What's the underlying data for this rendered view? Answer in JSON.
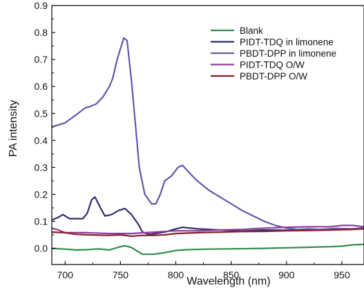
{
  "chart_data": {
    "type": "line",
    "title": "",
    "xlabel": "Wavelength (nm)",
    "ylabel": "PA intensity",
    "xlim": [
      688,
      970
    ],
    "ylim": [
      -0.06,
      0.9
    ],
    "xticks": [
      700,
      750,
      800,
      850,
      900,
      950
    ],
    "xtick_labels": [
      "700",
      "750",
      "800",
      "850",
      "900",
      "950"
    ],
    "yticks": [
      0.0,
      0.1,
      0.2,
      0.3,
      0.4,
      0.5,
      0.6,
      0.7,
      0.8,
      0.9
    ],
    "ytick_labels": [
      "0.0",
      "0.1",
      "0.2",
      "0.3",
      "0.4",
      "0.5",
      "0.6",
      "0.7",
      "0.8",
      "0.9"
    ],
    "grid": false,
    "legend_position": "top-right",
    "series": [
      {
        "name": "Blank",
        "color": "#2e8b4a",
        "points": [
          [
            688,
            0.0
          ],
          [
            700,
            -0.003
          ],
          [
            710,
            -0.006
          ],
          [
            720,
            -0.005
          ],
          [
            730,
            -0.002
          ],
          [
            740,
            -0.006
          ],
          [
            748,
            0.004
          ],
          [
            754,
            0.01
          ],
          [
            760,
            0.003
          ],
          [
            766,
            -0.012
          ],
          [
            770,
            -0.022
          ],
          [
            780,
            -0.022
          ],
          [
            790,
            -0.016
          ],
          [
            800,
            -0.008
          ],
          [
            810,
            -0.005
          ],
          [
            830,
            -0.003
          ],
          [
            850,
            -0.002
          ],
          [
            880,
            0.0
          ],
          [
            900,
            0.002
          ],
          [
            920,
            0.004
          ],
          [
            940,
            0.006
          ],
          [
            950,
            0.008
          ],
          [
            960,
            0.013
          ],
          [
            970,
            0.015
          ]
        ]
      },
      {
        "name": "PIDT-TDQ in limonene",
        "color": "#2d2d72",
        "points": [
          [
            688,
            0.105
          ],
          [
            694,
            0.115
          ],
          [
            698,
            0.125
          ],
          [
            704,
            0.11
          ],
          [
            710,
            0.11
          ],
          [
            716,
            0.11
          ],
          [
            720,
            0.13
          ],
          [
            724,
            0.18
          ],
          [
            727,
            0.19
          ],
          [
            732,
            0.15
          ],
          [
            736,
            0.12
          ],
          [
            742,
            0.125
          ],
          [
            748,
            0.14
          ],
          [
            754,
            0.148
          ],
          [
            760,
            0.125
          ],
          [
            766,
            0.09
          ],
          [
            770,
            0.06
          ],
          [
            776,
            0.052
          ],
          [
            782,
            0.055
          ],
          [
            790,
            0.06
          ],
          [
            800,
            0.072
          ],
          [
            806,
            0.078
          ],
          [
            820,
            0.072
          ],
          [
            840,
            0.068
          ],
          [
            860,
            0.064
          ],
          [
            880,
            0.068
          ],
          [
            900,
            0.067
          ],
          [
            920,
            0.068
          ],
          [
            940,
            0.07
          ],
          [
            960,
            0.072
          ],
          [
            970,
            0.072
          ]
        ]
      },
      {
        "name": "PBDT-DPP in limonene",
        "color": "#6655aa",
        "points": [
          [
            688,
            0.45
          ],
          [
            700,
            0.465
          ],
          [
            710,
            0.495
          ],
          [
            718,
            0.52
          ],
          [
            722,
            0.525
          ],
          [
            728,
            0.535
          ],
          [
            734,
            0.56
          ],
          [
            740,
            0.6
          ],
          [
            743,
            0.63
          ],
          [
            747,
            0.7
          ],
          [
            750,
            0.74
          ],
          [
            753,
            0.78
          ],
          [
            756,
            0.77
          ],
          [
            760,
            0.62
          ],
          [
            764,
            0.44
          ],
          [
            767,
            0.3
          ],
          [
            772,
            0.2
          ],
          [
            778,
            0.165
          ],
          [
            782,
            0.165
          ],
          [
            786,
            0.2
          ],
          [
            790,
            0.25
          ],
          [
            796,
            0.268
          ],
          [
            802,
            0.3
          ],
          [
            806,
            0.308
          ],
          [
            810,
            0.29
          ],
          [
            818,
            0.255
          ],
          [
            830,
            0.215
          ],
          [
            840,
            0.19
          ],
          [
            850,
            0.165
          ],
          [
            860,
            0.14
          ],
          [
            870,
            0.12
          ],
          [
            880,
            0.1
          ],
          [
            890,
            0.085
          ],
          [
            900,
            0.075
          ],
          [
            910,
            0.07
          ],
          [
            920,
            0.072
          ],
          [
            930,
            0.07
          ],
          [
            945,
            0.074
          ],
          [
            960,
            0.072
          ],
          [
            970,
            0.076
          ]
        ]
      },
      {
        "name": "PIDT-TDQ O/W",
        "color": "#8a3e98",
        "points": [
          [
            688,
            0.075
          ],
          [
            694,
            0.068
          ],
          [
            700,
            0.058
          ],
          [
            710,
            0.058
          ],
          [
            720,
            0.058
          ],
          [
            740,
            0.055
          ],
          [
            760,
            0.055
          ],
          [
            780,
            0.06
          ],
          [
            800,
            0.065
          ],
          [
            820,
            0.065
          ],
          [
            840,
            0.068
          ],
          [
            860,
            0.07
          ],
          [
            880,
            0.075
          ],
          [
            900,
            0.078
          ],
          [
            920,
            0.08
          ],
          [
            940,
            0.08
          ],
          [
            950,
            0.085
          ],
          [
            960,
            0.085
          ],
          [
            970,
            0.08
          ]
        ]
      },
      {
        "name": "PBDT-DPP O/W",
        "color": "#8b1e2a",
        "points": [
          [
            688,
            0.06
          ],
          [
            700,
            0.058
          ],
          [
            710,
            0.052
          ],
          [
            720,
            0.05
          ],
          [
            740,
            0.048
          ],
          [
            750,
            0.05
          ],
          [
            760,
            0.045
          ],
          [
            770,
            0.048
          ],
          [
            780,
            0.048
          ],
          [
            790,
            0.05
          ],
          [
            800,
            0.055
          ],
          [
            820,
            0.058
          ],
          [
            840,
            0.06
          ],
          [
            860,
            0.062
          ],
          [
            880,
            0.063
          ],
          [
            900,
            0.065
          ],
          [
            920,
            0.066
          ],
          [
            940,
            0.068
          ],
          [
            960,
            0.07
          ],
          [
            970,
            0.072
          ]
        ]
      }
    ]
  }
}
